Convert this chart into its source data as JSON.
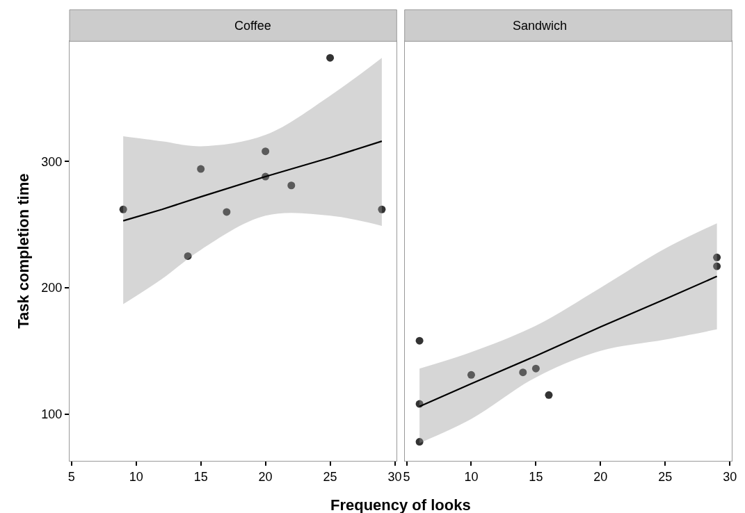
{
  "chart_data": [
    {
      "type": "scatter",
      "title": "Coffee",
      "xlabel": "Frequency of looks",
      "ylabel": "Task completion time",
      "xlim": [
        4.85,
        30.15
      ],
      "xticks": [
        5,
        10,
        15,
        20,
        25,
        30
      ],
      "ylim": [
        62.9,
        395.1
      ],
      "yticks": [
        100,
        200,
        300
      ],
      "grid": false,
      "series": [
        {
          "marker": "circle",
          "color": "#333333",
          "x": [
            9,
            14,
            15,
            17,
            20,
            20,
            22,
            25,
            29
          ],
          "values": [
            262,
            225,
            294,
            260,
            308,
            288,
            281,
            382,
            262
          ]
        },
        {
          "type": "line",
          "marker": "none",
          "color": "#000000",
          "x": [
            9,
            12,
            15,
            20,
            25,
            29
          ],
          "values": [
            253,
            262,
            272,
            288,
            303,
            316
          ],
          "lower": [
            187,
            207,
            230,
            257,
            257,
            249
          ],
          "upper": [
            320,
            316,
            312,
            321,
            352,
            382
          ]
        }
      ]
    },
    {
      "type": "scatter",
      "title": "Sandwich",
      "xlim": [
        4.85,
        30.15
      ],
      "xticks": [
        5,
        10,
        15,
        20,
        25,
        30
      ],
      "ylim": [
        62.9,
        395.1
      ],
      "yticks": [
        100,
        200,
        300
      ],
      "tick_labels": "x",
      "grid": false,
      "series": [
        {
          "marker": "circle",
          "color": "#333333",
          "x": [
            6,
            6,
            6,
            10,
            14,
            15,
            16,
            29,
            29
          ],
          "values": [
            158,
            108,
            78,
            131,
            133,
            136,
            115,
            224,
            217
          ]
        },
        {
          "type": "line",
          "marker": "none",
          "color": "#000000",
          "x": [
            6,
            10,
            15,
            20,
            25,
            29
          ],
          "values": [
            106,
            124,
            146,
            169,
            191,
            209
          ],
          "lower": [
            77,
            96,
            129,
            150,
            159,
            167
          ],
          "upper": [
            136,
            149,
            170,
            200,
            231,
            251
          ]
        }
      ]
    }
  ]
}
